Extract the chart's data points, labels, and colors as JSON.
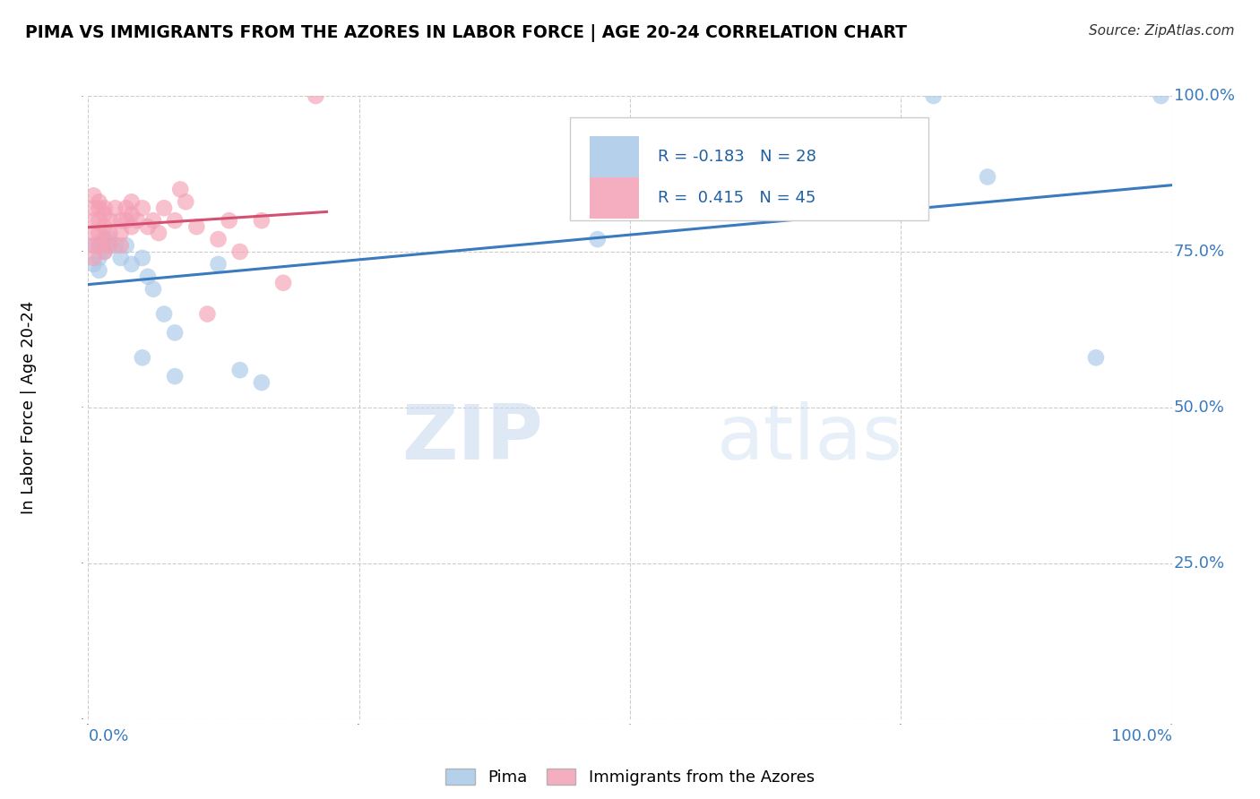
{
  "title": "PIMA VS IMMIGRANTS FROM THE AZORES IN LABOR FORCE | AGE 20-24 CORRELATION CHART",
  "source": "Source: ZipAtlas.com",
  "ylabel": "In Labor Force | Age 20-24",
  "legend_labels": [
    "Pima",
    "Immigrants from the Azores"
  ],
  "pima_color": "#a8c8e8",
  "azores_color": "#f4a0b5",
  "pima_line_color": "#3a7abf",
  "azores_line_color": "#d45070",
  "r_pima": -0.183,
  "n_pima": 28,
  "r_azores": 0.415,
  "n_azores": 45,
  "xlim": [
    0.0,
    1.0
  ],
  "ylim": [
    0.0,
    1.0
  ],
  "xticks": [
    0.0,
    0.25,
    0.5,
    0.75,
    1.0
  ],
  "yticks": [
    0.0,
    0.25,
    0.5,
    0.75,
    1.0
  ],
  "watermark": "ZIPatlas",
  "pima_x": [
    0.005,
    0.005,
    0.01,
    0.01,
    0.01,
    0.015,
    0.015,
    0.02,
    0.02,
    0.025,
    0.03,
    0.035,
    0.04,
    0.05,
    0.055,
    0.06,
    0.07,
    0.08,
    0.12,
    0.05,
    0.08,
    0.14,
    0.16,
    0.47,
    0.78,
    0.83,
    0.93,
    0.99
  ],
  "pima_y": [
    0.76,
    0.73,
    0.76,
    0.74,
    0.72,
    0.77,
    0.75,
    0.77,
    0.76,
    0.76,
    0.74,
    0.76,
    0.73,
    0.74,
    0.71,
    0.69,
    0.65,
    0.62,
    0.73,
    0.58,
    0.55,
    0.56,
    0.54,
    0.77,
    1.0,
    0.87,
    0.58,
    1.0
  ],
  "azores_x": [
    0.005,
    0.005,
    0.005,
    0.005,
    0.005,
    0.005,
    0.01,
    0.01,
    0.01,
    0.01,
    0.01,
    0.015,
    0.015,
    0.015,
    0.015,
    0.015,
    0.02,
    0.02,
    0.02,
    0.025,
    0.03,
    0.03,
    0.03,
    0.035,
    0.035,
    0.04,
    0.04,
    0.04,
    0.045,
    0.05,
    0.055,
    0.06,
    0.065,
    0.07,
    0.08,
    0.085,
    0.09,
    0.1,
    0.11,
    0.12,
    0.13,
    0.14,
    0.16,
    0.18,
    0.21
  ],
  "azores_y": [
    0.84,
    0.82,
    0.8,
    0.78,
    0.76,
    0.74,
    0.82,
    0.8,
    0.78,
    0.76,
    0.83,
    0.81,
    0.79,
    0.77,
    0.75,
    0.82,
    0.8,
    0.78,
    0.76,
    0.82,
    0.8,
    0.78,
    0.76,
    0.8,
    0.82,
    0.83,
    0.81,
    0.79,
    0.8,
    0.82,
    0.79,
    0.8,
    0.78,
    0.82,
    0.8,
    0.85,
    0.83,
    0.79,
    0.65,
    0.77,
    0.8,
    0.75,
    0.8,
    0.7,
    1.0
  ],
  "pima_line_x0": 0.0,
  "pima_line_x1": 1.0,
  "azores_line_x0": 0.0,
  "azores_line_x1": 0.22
}
